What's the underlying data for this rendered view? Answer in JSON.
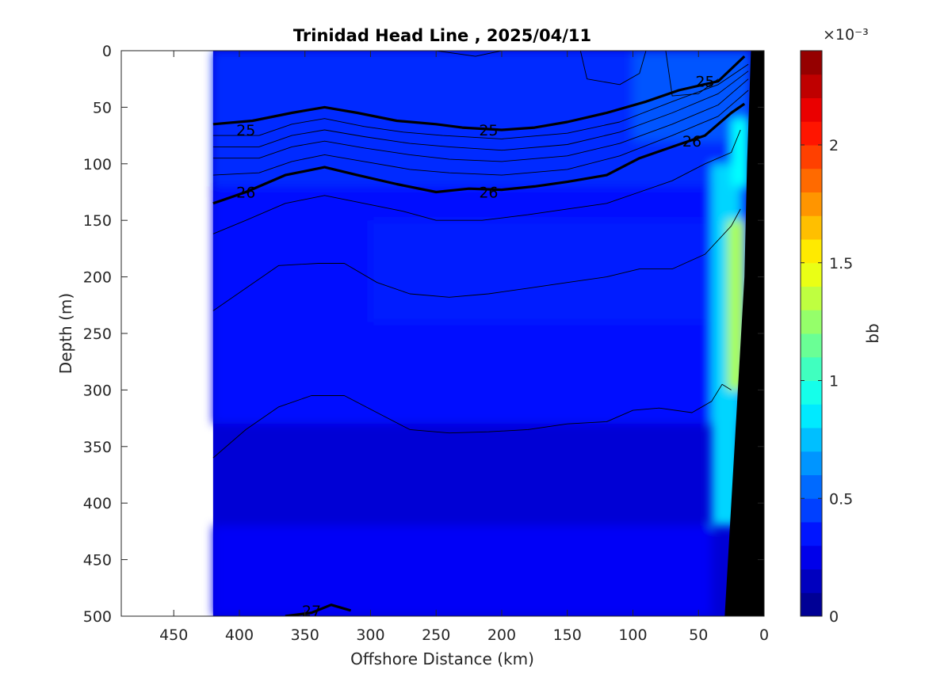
{
  "chart_data": {
    "type": "heatmap",
    "title": "Trinidad Head Line , 2025/04/11",
    "xlabel": "Offshore Distance (km)",
    "ylabel": "Depth (m)",
    "xlim": [
      490,
      0
    ],
    "ylim": [
      500,
      0
    ],
    "x_reversed": true,
    "y_reversed": true,
    "x_ticks": [
      450,
      400,
      350,
      300,
      250,
      200,
      150,
      100,
      50,
      0
    ],
    "y_ticks": [
      0,
      50,
      100,
      150,
      200,
      250,
      300,
      350,
      400,
      450,
      500
    ],
    "data_extent_x": [
      0,
      420
    ],
    "colorbar": {
      "label": "bb",
      "exponent_label": "×10⁻³",
      "range": [
        0,
        2.4
      ],
      "ticks": [
        0,
        0.5,
        1,
        1.5,
        2
      ],
      "tick_labels": [
        "0",
        "0.5",
        "1",
        "1.5",
        "2"
      ],
      "colormap": "jet",
      "levels": 24
    },
    "contour_labels": [
      {
        "text": "25",
        "x": 395,
        "y": 70
      },
      {
        "text": "25",
        "x": 210,
        "y": 70
      },
      {
        "text": "25",
        "x": 45,
        "y": 27
      },
      {
        "text": "26",
        "x": 395,
        "y": 125
      },
      {
        "text": "26",
        "x": 210,
        "y": 125
      },
      {
        "text": "26",
        "x": 55,
        "y": 80
      },
      {
        "text": "27",
        "x": 345,
        "y": 495
      }
    ],
    "contours": [
      {
        "level": 25,
        "bold": true,
        "points": [
          [
            420,
            65
          ],
          [
            390,
            62
          ],
          [
            360,
            55
          ],
          [
            335,
            50
          ],
          [
            310,
            55
          ],
          [
            280,
            62
          ],
          [
            250,
            65
          ],
          [
            230,
            68
          ],
          [
            200,
            70
          ],
          [
            175,
            68
          ],
          [
            150,
            63
          ],
          [
            120,
            55
          ],
          [
            90,
            45
          ],
          [
            65,
            35
          ],
          [
            35,
            27
          ],
          [
            15,
            5
          ]
        ]
      },
      {
        "level": 26,
        "bold": true,
        "points": [
          [
            420,
            135
          ],
          [
            395,
            125
          ],
          [
            365,
            110
          ],
          [
            335,
            103
          ],
          [
            310,
            110
          ],
          [
            280,
            118
          ],
          [
            250,
            125
          ],
          [
            225,
            122
          ],
          [
            200,
            123
          ],
          [
            175,
            120
          ],
          [
            150,
            116
          ],
          [
            120,
            110
          ],
          [
            95,
            95
          ],
          [
            70,
            85
          ],
          [
            45,
            75
          ],
          [
            25,
            55
          ],
          [
            15,
            47
          ]
        ]
      },
      {
        "level": 27,
        "bold": true,
        "points": [
          [
            365,
            500
          ],
          [
            345,
            497
          ],
          [
            330,
            490
          ],
          [
            315,
            495
          ]
        ]
      },
      {
        "level": 25.2,
        "bold": false,
        "points": [
          [
            420,
            75
          ],
          [
            385,
            75
          ],
          [
            360,
            65
          ],
          [
            335,
            60
          ],
          [
            305,
            67
          ],
          [
            275,
            72
          ],
          [
            245,
            75
          ],
          [
            200,
            78
          ],
          [
            150,
            73
          ],
          [
            110,
            63
          ],
          [
            70,
            45
          ],
          [
            35,
            30
          ],
          [
            12,
            12
          ]
        ]
      },
      {
        "level": 25.4,
        "bold": false,
        "points": [
          [
            420,
            85
          ],
          [
            385,
            85
          ],
          [
            360,
            75
          ],
          [
            335,
            70
          ],
          [
            305,
            76
          ],
          [
            270,
            82
          ],
          [
            240,
            85
          ],
          [
            200,
            88
          ],
          [
            150,
            83
          ],
          [
            110,
            72
          ],
          [
            70,
            55
          ],
          [
            35,
            38
          ],
          [
            12,
            18
          ]
        ]
      },
      {
        "level": 25.6,
        "bold": false,
        "points": [
          [
            420,
            95
          ],
          [
            385,
            95
          ],
          [
            360,
            85
          ],
          [
            335,
            80
          ],
          [
            305,
            86
          ],
          [
            270,
            92
          ],
          [
            240,
            96
          ],
          [
            200,
            98
          ],
          [
            150,
            93
          ],
          [
            110,
            82
          ],
          [
            70,
            65
          ],
          [
            35,
            48
          ],
          [
            12,
            25
          ]
        ]
      },
      {
        "level": 25.8,
        "bold": false,
        "points": [
          [
            420,
            110
          ],
          [
            385,
            108
          ],
          [
            360,
            98
          ],
          [
            335,
            92
          ],
          [
            305,
            98
          ],
          [
            270,
            105
          ],
          [
            240,
            108
          ],
          [
            200,
            110
          ],
          [
            150,
            105
          ],
          [
            110,
            93
          ],
          [
            70,
            75
          ],
          [
            35,
            58
          ],
          [
            12,
            35
          ]
        ]
      },
      {
        "level": 26.2,
        "bold": false,
        "points": [
          [
            420,
            162
          ],
          [
            395,
            150
          ],
          [
            365,
            135
          ],
          [
            335,
            128
          ],
          [
            305,
            135
          ],
          [
            275,
            142
          ],
          [
            250,
            150
          ],
          [
            215,
            150
          ],
          [
            180,
            145
          ],
          [
            150,
            140
          ],
          [
            120,
            135
          ],
          [
            95,
            125
          ],
          [
            70,
            115
          ],
          [
            45,
            100
          ],
          [
            25,
            90
          ],
          [
            18,
            70
          ]
        ]
      },
      {
        "level": 26.4,
        "bold": false,
        "points": [
          [
            420,
            230
          ],
          [
            395,
            210
          ],
          [
            370,
            190
          ],
          [
            340,
            188
          ],
          [
            320,
            188
          ],
          [
            295,
            205
          ],
          [
            270,
            215
          ],
          [
            240,
            218
          ],
          [
            210,
            215
          ],
          [
            180,
            210
          ],
          [
            150,
            205
          ],
          [
            120,
            200
          ],
          [
            95,
            193
          ],
          [
            70,
            193
          ],
          [
            45,
            180
          ],
          [
            25,
            155
          ],
          [
            18,
            140
          ]
        ]
      },
      {
        "level": 26.6,
        "bold": false,
        "points": [
          [
            420,
            360
          ],
          [
            395,
            335
          ],
          [
            370,
            315
          ],
          [
            345,
            305
          ],
          [
            320,
            305
          ],
          [
            295,
            320
          ],
          [
            270,
            335
          ],
          [
            240,
            338
          ],
          [
            210,
            337
          ],
          [
            180,
            335
          ],
          [
            150,
            330
          ],
          [
            120,
            328
          ],
          [
            100,
            318
          ],
          [
            80,
            316
          ],
          [
            55,
            320
          ],
          [
            40,
            310
          ],
          [
            32,
            295
          ],
          [
            25,
            300
          ]
        ]
      },
      {
        "level": 24.8,
        "bold": false,
        "points": [
          [
            75,
            0
          ],
          [
            70,
            40
          ],
          [
            50,
            38
          ],
          [
            35,
            25
          ]
        ]
      },
      {
        "level": 24.9,
        "bold": false,
        "points": [
          [
            140,
            0
          ],
          [
            135,
            25
          ],
          [
            110,
            30
          ],
          [
            95,
            20
          ],
          [
            90,
            0
          ]
        ]
      },
      {
        "level": 24.95,
        "bold": false,
        "points": [
          [
            250,
            0
          ],
          [
            220,
            5
          ],
          [
            200,
            0
          ]
        ]
      }
    ],
    "field_note": "Background field mostly 0.2–0.4; higher values (~0.6–1.5) in a narrow band near the coast (x < 30 km), up to ~1.5 near 200 m depth.",
    "bathymetry_polygon": [
      [
        10,
        0
      ],
      [
        13,
        100
      ],
      [
        15,
        200
      ],
      [
        20,
        300
      ],
      [
        25,
        400
      ],
      [
        30,
        500
      ],
      [
        0,
        500
      ],
      [
        0,
        0
      ]
    ]
  }
}
